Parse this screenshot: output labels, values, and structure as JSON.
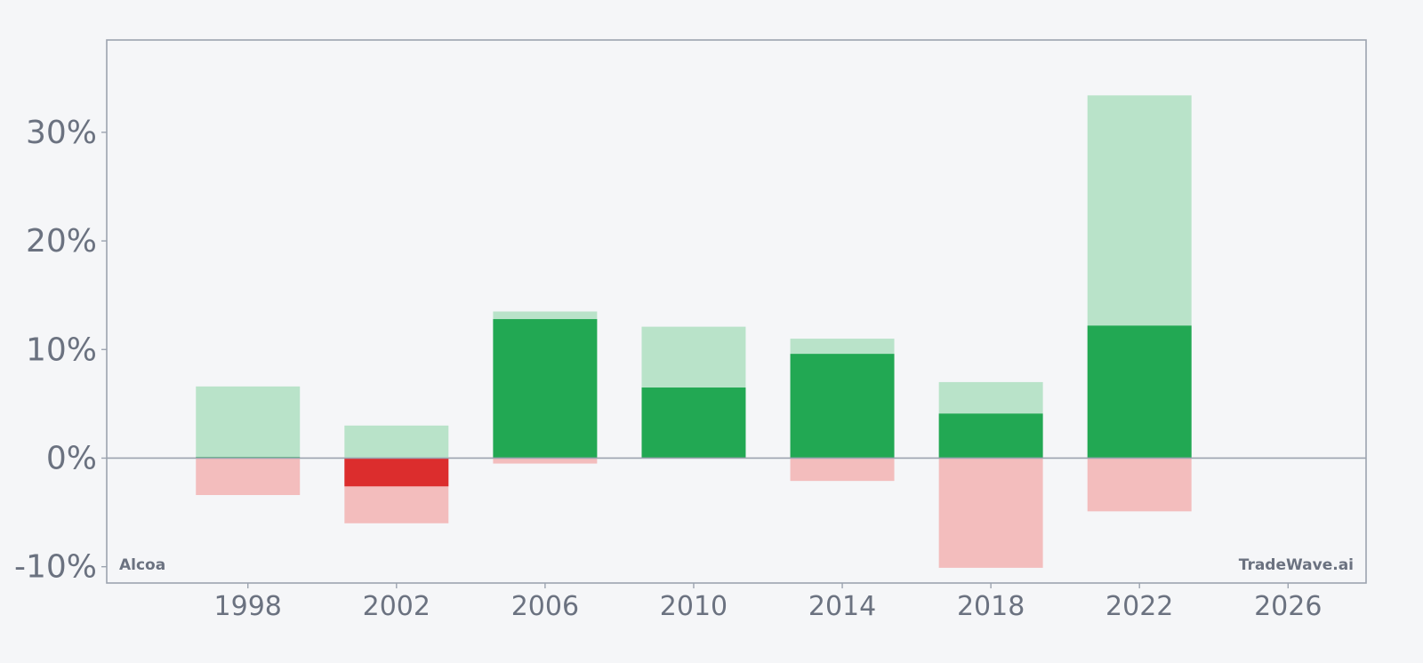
{
  "chart_data": {
    "type": "bar",
    "x": [
      1998,
      2002,
      2006,
      2010,
      2014,
      2018,
      2022
    ],
    "series": [
      {
        "values": [
          0.1,
          -2.6,
          12.8,
          6.5,
          9.6,
          4.1,
          12.2
        ]
      },
      {
        "values": [
          6.6,
          3.0,
          13.5,
          12.1,
          11.0,
          7.0,
          33.4
        ]
      },
      {
        "values": [
          -3.4,
          -6.0,
          -0.5,
          0,
          -2.1,
          -10.1,
          -4.9
        ]
      }
    ],
    "yticks": [
      -10,
      0,
      10,
      20,
      30
    ],
    "ytick_labels": [
      "-10%",
      "0%",
      "10%",
      "20%",
      "30%"
    ],
    "xticks": [
      1998,
      2002,
      2006,
      2010,
      2014,
      2018,
      2022,
      2026
    ],
    "xtick_labels": [
      "1998",
      "2002",
      "2006",
      "2010",
      "2014",
      "2018",
      "2022",
      "2026"
    ],
    "ylim": [
      -11.5,
      38.5
    ],
    "xlim": [
      1994.2,
      2028.1
    ],
    "bar_width_years": 2.8,
    "grid": false,
    "colors": {
      "pos_main": "#22a853",
      "neg_main": "#dc2d2d",
      "pos_range": "#b9e3c9",
      "neg_range": "#f3bdbd",
      "axis": "#9ca3af",
      "zero_line": "#9ca3af"
    }
  },
  "corner": {
    "left": "Alcoa",
    "right": "TradeWave.ai"
  }
}
